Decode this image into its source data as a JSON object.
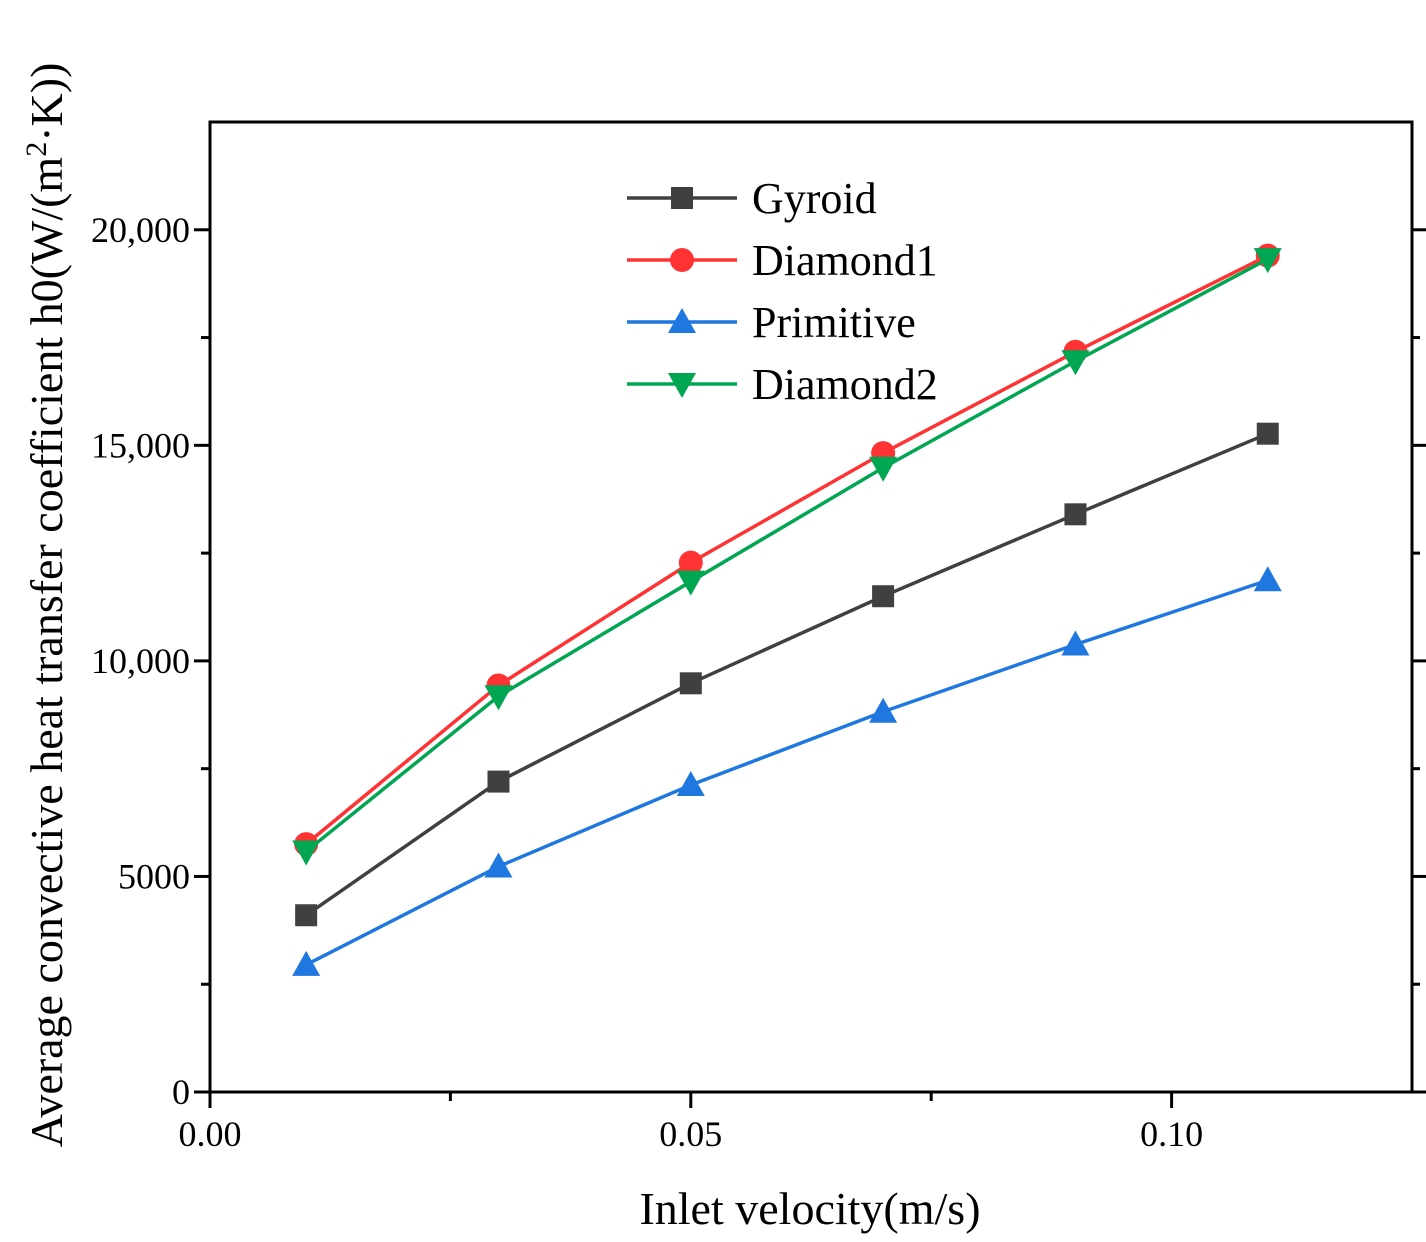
{
  "chart_data": {
    "type": "line",
    "title": "",
    "xlabel": "Inlet velocity(m/s)",
    "ylabel_main": "Average convective heat transfer coefficient h0(W/(m",
    "ylabel_sup": "2",
    "ylabel_tail": "·K))",
    "xlim": [
      0,
      0.125
    ],
    "ylim": [
      0,
      22500
    ],
    "x_ticks": [
      {
        "value": 0.0,
        "label": "0.00"
      },
      {
        "value": 0.05,
        "label": "0.05"
      },
      {
        "value": 0.1,
        "label": "0.10"
      }
    ],
    "x_minor_ticks": [
      0.025,
      0.075
    ],
    "y_ticks": [
      {
        "value": 0,
        "label": "0"
      },
      {
        "value": 5000,
        "label": "5000"
      },
      {
        "value": 10000,
        "label": "10,000"
      },
      {
        "value": 15000,
        "label": "15,000"
      },
      {
        "value": 20000,
        "label": "20,000"
      }
    ],
    "y_minor_ticks": [
      2500,
      7500,
      12500,
      17500
    ],
    "x": [
      0.01,
      0.03,
      0.05,
      0.07,
      0.09,
      0.11
    ],
    "legend_position": "top-center",
    "series": [
      {
        "name": "Gyroid",
        "color": "#404040",
        "marker": "square",
        "values": [
          4100,
          7200,
          9480,
          11500,
          13400,
          15270
        ]
      },
      {
        "name": "Diamond1",
        "color": "#ff3333",
        "marker": "circle",
        "values": [
          5750,
          9430,
          12280,
          14820,
          17170,
          19400
        ]
      },
      {
        "name": "Primitive",
        "color": "#1f77e0",
        "marker": "triangle-up",
        "values": [
          2950,
          5230,
          7120,
          8820,
          10380,
          11870
        ]
      },
      {
        "name": "Diamond2",
        "color": "#00a651",
        "marker": "triangle-down",
        "values": [
          5580,
          9180,
          11840,
          14480,
          16950,
          19320
        ]
      }
    ]
  }
}
